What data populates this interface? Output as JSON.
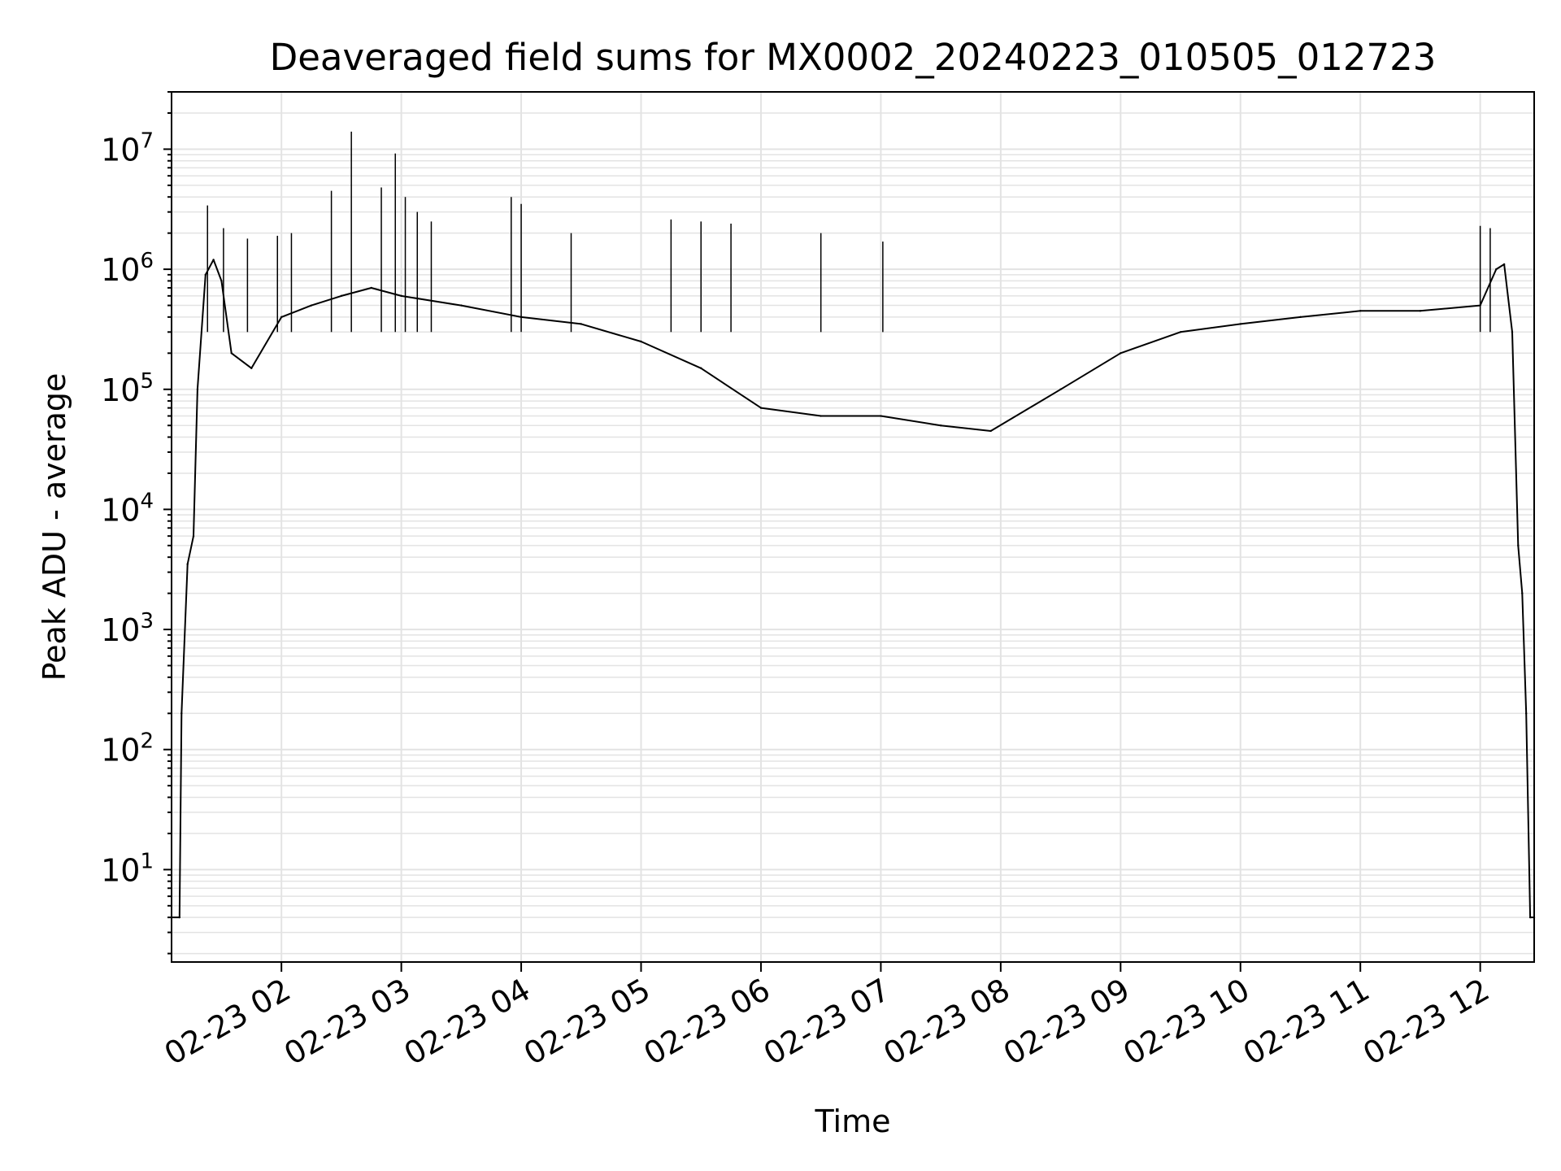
{
  "chart_data": {
    "type": "line",
    "title": "Deaveraged field sums for MX0002_20240223_010505_012723",
    "xlabel": "Time",
    "ylabel": "Peak ADU - average",
    "yscale": "log",
    "ylim": [
      1.7,
      30000000
    ],
    "xlim": [
      "2024-02-23 01:05",
      "2024-02-23 12:27"
    ],
    "grid": true,
    "x_ticks": [
      "02-23 02",
      "02-23 03",
      "02-23 04",
      "02-23 05",
      "02-23 06",
      "02-23 07",
      "02-23 08",
      "02-23 09",
      "02-23 10",
      "02-23 11",
      "02-23 12"
    ],
    "x_tick_times": [
      "2024-02-23 02:00",
      "2024-02-23 03:00",
      "2024-02-23 04:00",
      "2024-02-23 05:00",
      "2024-02-23 06:00",
      "2024-02-23 07:00",
      "2024-02-23 08:00",
      "2024-02-23 09:00",
      "2024-02-23 10:00",
      "2024-02-23 11:00",
      "2024-02-23 12:00"
    ],
    "y_ticks": [
      {
        "value": 10,
        "base": "10",
        "exp": "1"
      },
      {
        "value": 100,
        "base": "10",
        "exp": "2"
      },
      {
        "value": 1000,
        "base": "10",
        "exp": "3"
      },
      {
        "value": 10000,
        "base": "10",
        "exp": "4"
      },
      {
        "value": 100000,
        "base": "10",
        "exp": "5"
      },
      {
        "value": 1000000,
        "base": "10",
        "exp": "6"
      },
      {
        "value": 10000000,
        "base": "10",
        "exp": "7"
      }
    ],
    "line_color": "#000000",
    "grid_color": "#e3e3e3",
    "series": [
      {
        "x": [
          "2024-02-23 01:05",
          "2024-02-23 01:09",
          "2024-02-23 01:10",
          "2024-02-23 01:13",
          "2024-02-23 01:16",
          "2024-02-23 01:18",
          "2024-02-23 01:22",
          "2024-02-23 01:26",
          "2024-02-23 01:30",
          "2024-02-23 01:35",
          "2024-02-23 01:45",
          "2024-02-23 02:00",
          "2024-02-23 02:15",
          "2024-02-23 02:30",
          "2024-02-23 02:45",
          "2024-02-23 03:00",
          "2024-02-23 03:30",
          "2024-02-23 04:00",
          "2024-02-23 04:30",
          "2024-02-23 05:00",
          "2024-02-23 05:30",
          "2024-02-23 06:00",
          "2024-02-23 06:30",
          "2024-02-23 07:00",
          "2024-02-23 07:30",
          "2024-02-23 07:55",
          "2024-02-23 08:30",
          "2024-02-23 09:00",
          "2024-02-23 09:30",
          "2024-02-23 10:00",
          "2024-02-23 10:30",
          "2024-02-23 11:00",
          "2024-02-23 11:30",
          "2024-02-23 12:00",
          "2024-02-23 12:08",
          "2024-02-23 12:12",
          "2024-02-23 12:16",
          "2024-02-23 12:19",
          "2024-02-23 12:21",
          "2024-02-23 12:23",
          "2024-02-23 12:25",
          "2024-02-23 12:27"
        ],
        "values": [
          4,
          4,
          200,
          3500,
          6000,
          100000,
          900000,
          1200000,
          800000,
          200000,
          150000,
          400000,
          500000,
          600000,
          700000,
          600000,
          500000,
          400000,
          350000,
          250000,
          150000,
          70000,
          60000,
          60000,
          50000,
          45000,
          100000,
          200000,
          300000,
          350000,
          400000,
          450000,
          450000,
          500000,
          1000000,
          1100000,
          300000,
          5000,
          2000,
          200,
          4,
          4
        ]
      }
    ],
    "spikes": [
      {
        "x": "2024-02-23 01:23",
        "y": 3400000
      },
      {
        "x": "2024-02-23 01:31",
        "y": 2200000
      },
      {
        "x": "2024-02-23 01:43",
        "y": 1800000
      },
      {
        "x": "2024-02-23 01:58",
        "y": 1900000
      },
      {
        "x": "2024-02-23 02:05",
        "y": 2000000
      },
      {
        "x": "2024-02-23 02:25",
        "y": 4500000
      },
      {
        "x": "2024-02-23 02:35",
        "y": 14000000
      },
      {
        "x": "2024-02-23 02:50",
        "y": 4800000
      },
      {
        "x": "2024-02-23 02:57",
        "y": 9200000
      },
      {
        "x": "2024-02-23 03:02",
        "y": 4000000
      },
      {
        "x": "2024-02-23 03:08",
        "y": 3000000
      },
      {
        "x": "2024-02-23 03:15",
        "y": 2500000
      },
      {
        "x": "2024-02-23 03:55",
        "y": 4000000
      },
      {
        "x": "2024-02-23 04:00",
        "y": 3500000
      },
      {
        "x": "2024-02-23 04:25",
        "y": 2000000
      },
      {
        "x": "2024-02-23 05:15",
        "y": 2600000
      },
      {
        "x": "2024-02-23 05:30",
        "y": 2500000
      },
      {
        "x": "2024-02-23 05:45",
        "y": 2400000
      },
      {
        "x": "2024-02-23 06:30",
        "y": 2000000
      },
      {
        "x": "2024-02-23 07:01",
        "y": 1700000
      },
      {
        "x": "2024-02-23 12:00",
        "y": 2300000
      },
      {
        "x": "2024-02-23 12:05",
        "y": 2200000
      }
    ]
  }
}
